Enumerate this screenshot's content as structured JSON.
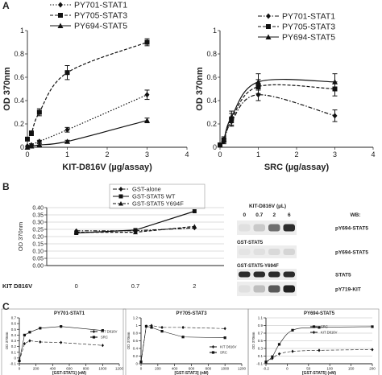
{
  "panels": {
    "A": {
      "label": "A"
    },
    "B": {
      "label": "B"
    },
    "C": {
      "label": "C"
    }
  },
  "chart_data": [
    {
      "id": "A1",
      "type": "line",
      "xlabel": "KIT-D816V (µg/assay)",
      "ylabel": "OD 370nm",
      "xlim": [
        0,
        4
      ],
      "ylim": [
        0,
        1
      ],
      "xticks": [
        "0",
        "1",
        "2",
        "3",
        "4"
      ],
      "yticks": [
        "0",
        "0.2",
        "0.4",
        "0.6",
        "0.8",
        "1"
      ],
      "legend": "top",
      "series": [
        {
          "name": "PY701-STAT1",
          "style": "dotted",
          "marker": "diamond",
          "x": [
            0,
            0.1,
            0.3,
            1,
            3
          ],
          "y": [
            0.01,
            0.02,
            0.05,
            0.15,
            0.45
          ],
          "err": [
            0,
            0.01,
            0.01,
            0.02,
            0.04
          ]
        },
        {
          "name": "PY705-STAT3",
          "style": "dashed",
          "marker": "square",
          "x": [
            0,
            0.1,
            0.3,
            1,
            3
          ],
          "y": [
            0.07,
            0.12,
            0.3,
            0.64,
            0.9
          ],
          "err": [
            0,
            0.02,
            0.03,
            0.06,
            0.03
          ]
        },
        {
          "name": "PY694-STAT5",
          "style": "solid",
          "marker": "triangle",
          "x": [
            0,
            0.1,
            0.3,
            1,
            3
          ],
          "y": [
            0.0,
            0.01,
            0.02,
            0.05,
            0.23
          ],
          "err": [
            0,
            0,
            0.01,
            0.01,
            0.02
          ]
        }
      ]
    },
    {
      "id": "A2",
      "type": "line",
      "xlabel": "SRC (µg/assay)",
      "ylabel": "OD 370nm",
      "xlim": [
        0,
        4
      ],
      "ylim": [
        0,
        1
      ],
      "xticks": [
        "0",
        "1",
        "2",
        "3",
        "4"
      ],
      "yticks": [
        "0",
        "0.2",
        "0.4",
        "0.6",
        "0.8",
        "1"
      ],
      "legend": "top",
      "series": [
        {
          "name": "PY701-STAT1",
          "style": "dashdot",
          "marker": "diamond",
          "x": [
            0,
            0.1,
            0.3,
            1,
            3
          ],
          "y": [
            0.02,
            0.05,
            0.22,
            0.45,
            0.27
          ],
          "err": [
            0,
            0.02,
            0.04,
            0.05,
            0.05
          ]
        },
        {
          "name": "PY705-STAT3",
          "style": "dashed",
          "marker": "square",
          "x": [
            0,
            0.1,
            0.3,
            1,
            3
          ],
          "y": [
            0.02,
            0.06,
            0.24,
            0.52,
            0.5
          ],
          "err": [
            0,
            0.02,
            0.05,
            0.06,
            0.06
          ]
        },
        {
          "name": "PY694-STAT5",
          "style": "solid",
          "marker": "triangle",
          "x": [
            0,
            0.1,
            0.3,
            1,
            3
          ],
          "y": [
            0.02,
            0.07,
            0.26,
            0.56,
            0.56
          ],
          "err": [
            0,
            0.02,
            0.05,
            0.07,
            0.07
          ]
        }
      ]
    },
    {
      "id": "B",
      "type": "line",
      "xlabel": "",
      "ylabel": "OD 370nm",
      "category_prefix": "KIT D816V",
      "categories": [
        "0",
        "0.7",
        "2"
      ],
      "ylim": [
        0,
        0.4
      ],
      "yticks": [
        "0.00",
        "0.05",
        "0.10",
        "0.15",
        "0.20",
        "0.25",
        "0.30",
        "0.35",
        "0.40"
      ],
      "grid": true,
      "legend": "top",
      "series": [
        {
          "name": "GST-alone",
          "style": "dashdot",
          "marker": "diamond",
          "values": [
            0.24,
            0.24,
            0.26
          ]
        },
        {
          "name": "GST-STAT5 WT",
          "style": "solid",
          "marker": "square",
          "values": [
            0.225,
            0.245,
            0.375
          ]
        },
        {
          "name": "GST-STAT5 Y694F",
          "style": "dashed",
          "marker": "triangle",
          "values": [
            0.23,
            0.23,
            0.27
          ]
        }
      ]
    },
    {
      "id": "C1",
      "type": "line",
      "title": "PY701-STAT1",
      "xlabel": "[GST-STAT1] (nM)",
      "ylabel": "OD 370nm",
      "xlim": [
        0,
        1200
      ],
      "ylim": [
        -0.1,
        0.7
      ],
      "xticks": [
        "0",
        "200",
        "400",
        "600",
        "800",
        "1000",
        "1200"
      ],
      "yticks": [
        "-0.1",
        "0",
        "0.1",
        "0.2",
        "0.3",
        "0.4",
        "0.5",
        "0.6",
        "0.7"
      ],
      "legend": "right",
      "series": [
        {
          "name": "KIT D816V",
          "style": "dashed",
          "marker": "diamond",
          "x": [
            0,
            62,
            125,
            250,
            500,
            1000
          ],
          "y": [
            -0.05,
            0.25,
            0.3,
            0.28,
            0.27,
            0.22
          ]
        },
        {
          "name": "SRC",
          "style": "solid",
          "marker": "square",
          "x": [
            0,
            62,
            125,
            250,
            500,
            1000
          ],
          "y": [
            -0.05,
            0.4,
            0.45,
            0.52,
            0.55,
            0.48
          ]
        }
      ]
    },
    {
      "id": "C2",
      "type": "line",
      "title": "PY705-STAT3",
      "xlabel": "[GST-STAT3] (nM)",
      "ylabel": "OD 370nm",
      "xlim": [
        0,
        1200
      ],
      "ylim": [
        0,
        1.2
      ],
      "xticks": [
        "0",
        "200",
        "400",
        "600",
        "800",
        "1000",
        "1200"
      ],
      "yticks": [
        "0",
        "0.2",
        "0.4",
        "0.6",
        "0.8",
        "1",
        "1.2"
      ],
      "legend": "bottom-right",
      "series": [
        {
          "name": "KIT D816V",
          "style": "dashed",
          "marker": "diamond",
          "x": [
            0,
            62,
            125,
            250,
            500,
            1000
          ],
          "y": [
            0.05,
            0.98,
            1.0,
            0.95,
            0.95,
            0.92
          ]
        },
        {
          "name": "SRC",
          "style": "solid",
          "marker": "square",
          "x": [
            0,
            62,
            125,
            250,
            500,
            1000
          ],
          "y": [
            0.05,
            0.98,
            0.95,
            0.85,
            0.7,
            0.68
          ]
        }
      ]
    },
    {
      "id": "C3",
      "type": "line",
      "title": "PY694-STAT5",
      "xlabel": "[GST-STAT5] (nM)",
      "ylabel": "OD 370nm",
      "xlim": [
        0,
        200
      ],
      "ylim": [
        -0.1,
        1.2
      ],
      "xticks": [
        "-0.2",
        "0",
        "50",
        "100",
        "150",
        "200"
      ],
      "yticks": [
        "-0.1",
        "0.1",
        "0.3",
        "0.5",
        "0.7",
        "0.9",
        "1.1"
      ],
      "grid": true,
      "legend": "top-center",
      "series": [
        {
          "name": "SRC",
          "style": "solid",
          "marker": "square",
          "x": [
            0,
            12,
            25,
            50,
            100,
            200
          ],
          "y": [
            -0.05,
            0.1,
            0.45,
            0.85,
            0.93,
            0.95
          ]
        },
        {
          "name": "KIT D816V",
          "style": "dashed",
          "marker": "diamond",
          "x": [
            0,
            12,
            25,
            50,
            100,
            200
          ],
          "y": [
            -0.05,
            0.05,
            0.18,
            0.25,
            0.28,
            0.3
          ]
        }
      ]
    }
  ],
  "blot": {
    "header": "KIT-D816V (µL)",
    "lanes": [
      "0",
      "0.7",
      "2",
      "6"
    ],
    "wb_label": "WB:",
    "sections": [
      {
        "title": "",
        "label": "pY694-STAT5",
        "intensity": [
          0.05,
          0.15,
          0.55,
          0.85
        ]
      },
      {
        "title": "GST-STAT5",
        "label": "pY694-STAT5",
        "intensity": [
          0.03,
          0.05,
          0.08,
          0.1
        ]
      },
      {
        "title": "GST-STAT5-Y694F",
        "label": "STAT5",
        "intensity": [
          0.85,
          0.85,
          0.85,
          0.85
        ]
      },
      {
        "title": "",
        "label": "pY719-KIT",
        "intensity": [
          0.05,
          0.2,
          0.65,
          0.9
        ]
      }
    ]
  }
}
